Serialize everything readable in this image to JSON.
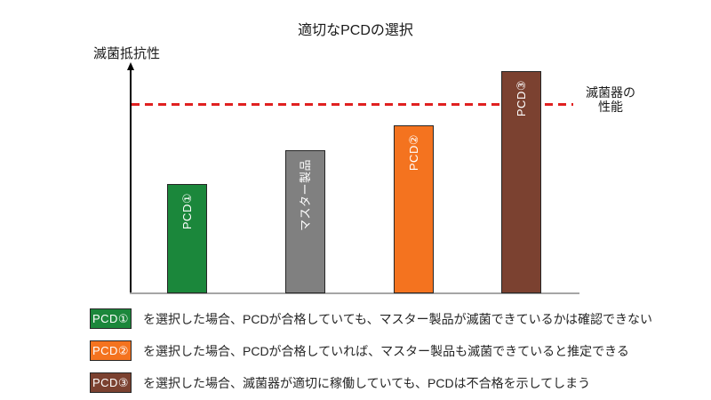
{
  "title": "適切なPCDの選択",
  "chart_data": {
    "type": "bar",
    "title": "適切なPCDの選択",
    "ylabel": "滅菌抵抗性",
    "xlabel": "",
    "categories": [
      "PCD①",
      "マスター製品",
      "PCD②",
      "PCD③"
    ],
    "values": [
      58,
      76,
      89,
      118
    ],
    "value_scale": "relative units, sterilizer performance threshold = 100",
    "ylim": [
      0,
      125
    ],
    "grid": false,
    "bar_colors": [
      "#1b873b",
      "#808080",
      "#f4731f",
      "#7b4130"
    ],
    "bar_border_color": "#262626",
    "axis_color": "#a6a6a6",
    "threshold_line": {
      "label": "滅菌器の性能",
      "value": 100,
      "color": "#e02020",
      "style": "dashed"
    }
  },
  "threshold_label": {
    "line1": "滅菌器の",
    "line2": "性能"
  },
  "legend": {
    "items": [
      {
        "label": "PCD①",
        "color": "#1b873b",
        "text": "を選択した場合、PCDが合格していても、マスター製品が滅菌できているかは確認できない"
      },
      {
        "label": "PCD②",
        "color": "#f4731f",
        "text": "を選択した場合、PCDが合格していれば、マスター製品も滅菌できていると推定できる"
      },
      {
        "label": "PCD③",
        "color": "#7b4130",
        "text": "を選択した場合、滅菌器が適切に稼働していても、PCDは不合格を示してしまう"
      }
    ]
  }
}
